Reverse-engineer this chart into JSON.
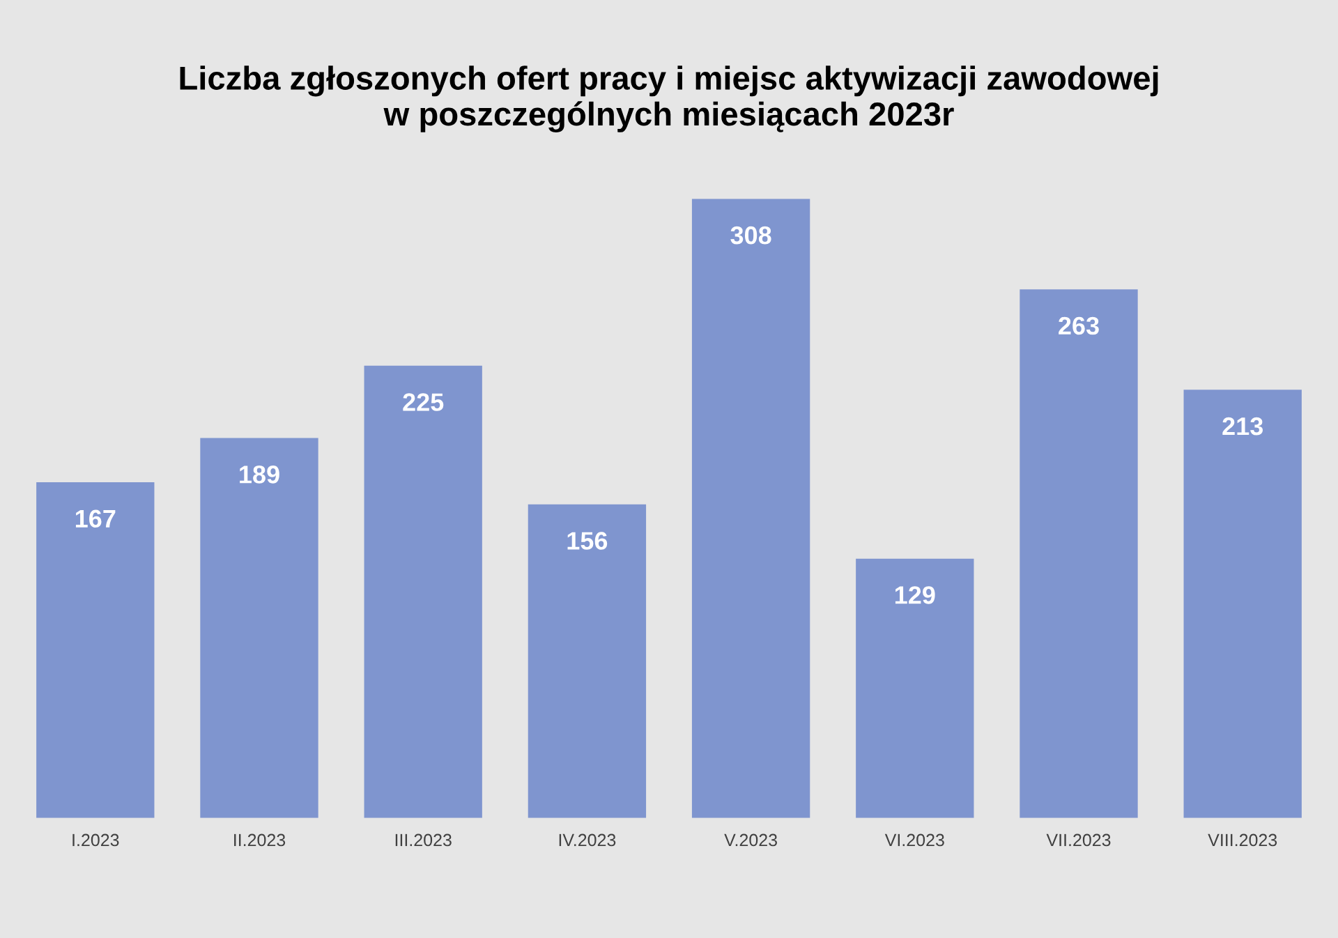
{
  "chart_data": {
    "type": "bar",
    "title": "Liczba zgłoszonych ofert pracy i miejsc aktywizacji zawodowej\nw poszczególnych miesiącach 2023r",
    "categories": [
      "I.2023",
      "II.2023",
      "III.2023",
      "IV.2023",
      "V.2023",
      "VI.2023",
      "VII.2023",
      "VIII.2023"
    ],
    "values": [
      167,
      189,
      225,
      156,
      308,
      129,
      263,
      213
    ],
    "color": "#7f95cf",
    "data_labels": true,
    "grid": false,
    "legend": false
  }
}
